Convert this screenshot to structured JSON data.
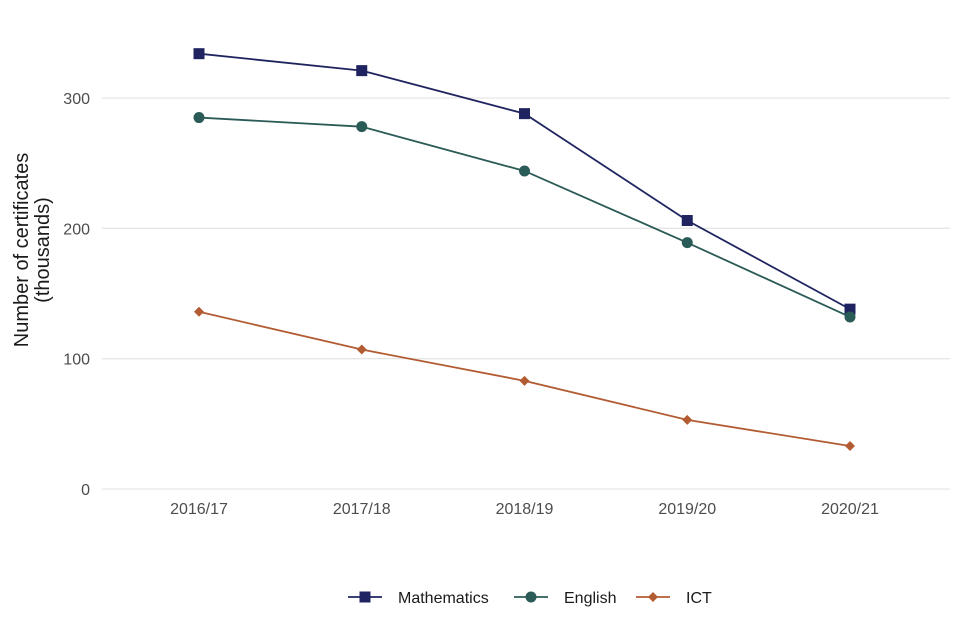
{
  "chart_data": {
    "type": "line",
    "title": "",
    "xlabel": "",
    "ylabel": "Number of certificates\n(thousands)",
    "x": [
      "2016/17",
      "2017/18",
      "2018/19",
      "2019/20",
      "2020/21"
    ],
    "ylim": [
      0,
      345
    ],
    "yticks": [
      0,
      100,
      200,
      300
    ],
    "grid": true,
    "legend_position": "bottom",
    "series": [
      {
        "name": "Mathematics",
        "values": [
          334,
          321,
          288,
          206,
          138
        ],
        "color": "#1f2460",
        "marker": "square"
      },
      {
        "name": "English",
        "values": [
          285,
          278,
          244,
          189,
          132
        ],
        "color": "#2b5b57",
        "marker": "circle"
      },
      {
        "name": "ICT",
        "values": [
          136,
          107,
          83,
          53,
          33
        ],
        "color": "#b35c33",
        "marker": "diamond"
      }
    ]
  }
}
